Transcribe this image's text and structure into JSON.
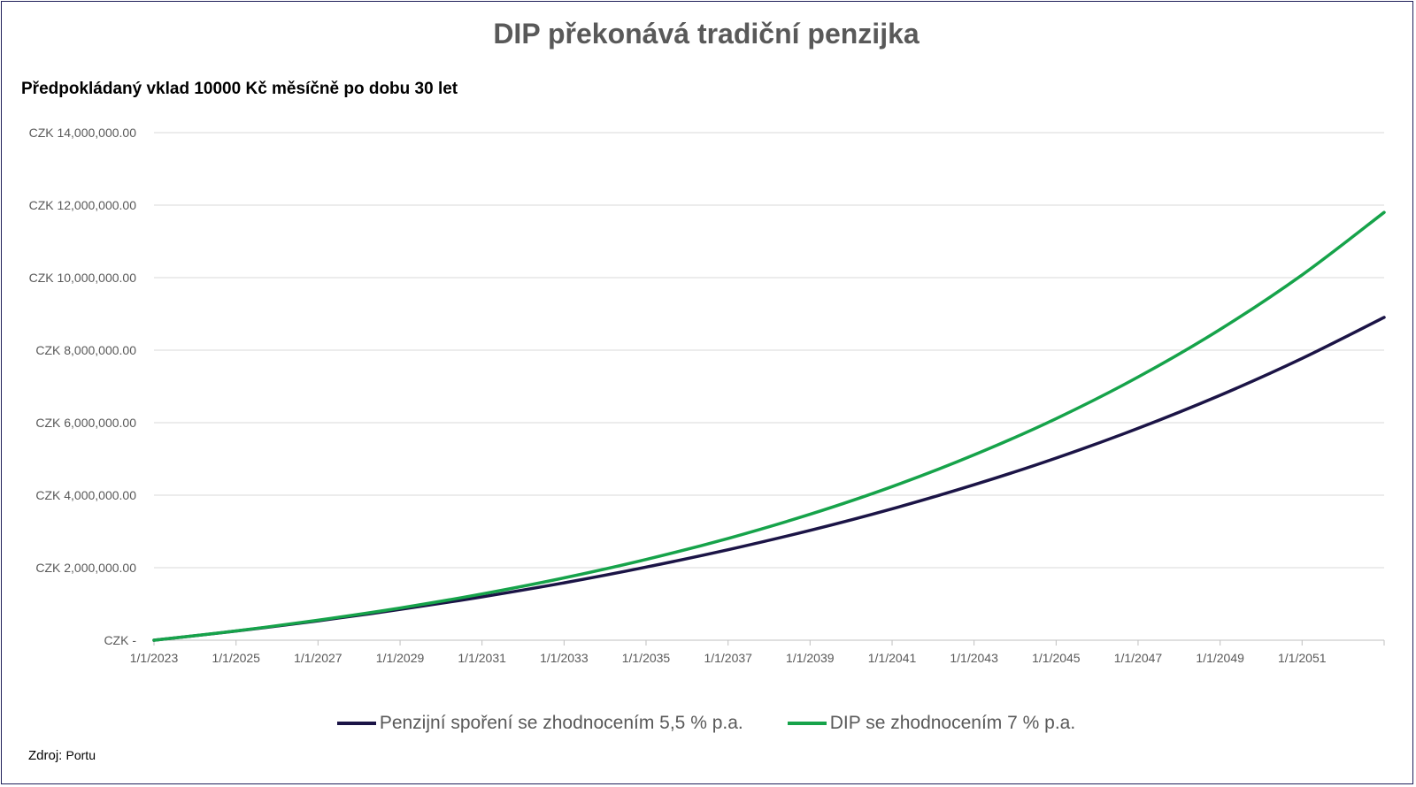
{
  "colors": {
    "pension": "#1b1446",
    "dip": "#16a34a",
    "grid": "#d9d9d9",
    "axis_text": "#595959"
  },
  "chart_data": {
    "type": "line",
    "title": "DIP překonává tradiční penzijka",
    "subtitle": "Předpokládaný  vklad  10000 Kč měsíčně po dobu 30 let",
    "ylim": [
      0,
      14000000
    ],
    "y_ticks": [
      0,
      2000000,
      4000000,
      6000000,
      8000000,
      10000000,
      12000000,
      14000000
    ],
    "y_tick_labels": [
      "CZK -",
      "CZK 2,000,000.00",
      "CZK 4,000,000.00",
      "CZK 6,000,000.00",
      "CZK 8,000,000.00",
      "CZK 10,000,000.00",
      "CZK 12,000,000.00",
      "CZK 14,000,000.00"
    ],
    "x_tick_labels": [
      "1/1/2023",
      "1/1/2025",
      "1/1/2027",
      "1/1/2029",
      "1/1/2031",
      "1/1/2033",
      "1/1/2035",
      "1/1/2037",
      "1/1/2039",
      "1/1/2041",
      "1/1/2043",
      "1/1/2045",
      "1/1/2047",
      "1/1/2049",
      "1/1/2051"
    ],
    "xlim": [
      "1/1/2023",
      "1/1/2053"
    ],
    "grid": "horizontal",
    "legend_position": "bottom",
    "series": [
      {
        "name": "Penzijní spoření se zhodnocením 5,5 % p.a.",
        "x": [
          "1/1/2023",
          "1/1/2025",
          "1/1/2027",
          "1/1/2029",
          "1/1/2031",
          "1/1/2033",
          "1/1/2035",
          "1/1/2037",
          "1/1/2039",
          "1/1/2041",
          "1/1/2043",
          "1/1/2045",
          "1/1/2047",
          "1/1/2049",
          "1/1/2051",
          "1/1/2053"
        ],
        "values": [
          0,
          253000,
          535000,
          848000,
          1196000,
          1584000,
          2016000,
          2496000,
          3030000,
          3625000,
          4287000,
          5024000,
          5844000,
          6757000,
          7773000,
          8905000
        ]
      },
      {
        "name": "DIP se zhodnocením 7 % p.a.",
        "x": [
          "1/1/2023",
          "1/1/2025",
          "1/1/2027",
          "1/1/2029",
          "1/1/2031",
          "1/1/2033",
          "1/1/2035",
          "1/1/2037",
          "1/1/2039",
          "1/1/2041",
          "1/1/2043",
          "1/1/2045",
          "1/1/2047",
          "1/1/2049",
          "1/1/2051",
          "1/1/2053"
        ],
        "values": [
          0,
          257000,
          552000,
          889000,
          1276000,
          1719000,
          2226000,
          2808000,
          3474000,
          4237000,
          5111000,
          6112000,
          7258000,
          8572000,
          10076000,
          11799000
        ]
      }
    ]
  },
  "source": {
    "label": "Zdroj:",
    "value": "Portu"
  }
}
